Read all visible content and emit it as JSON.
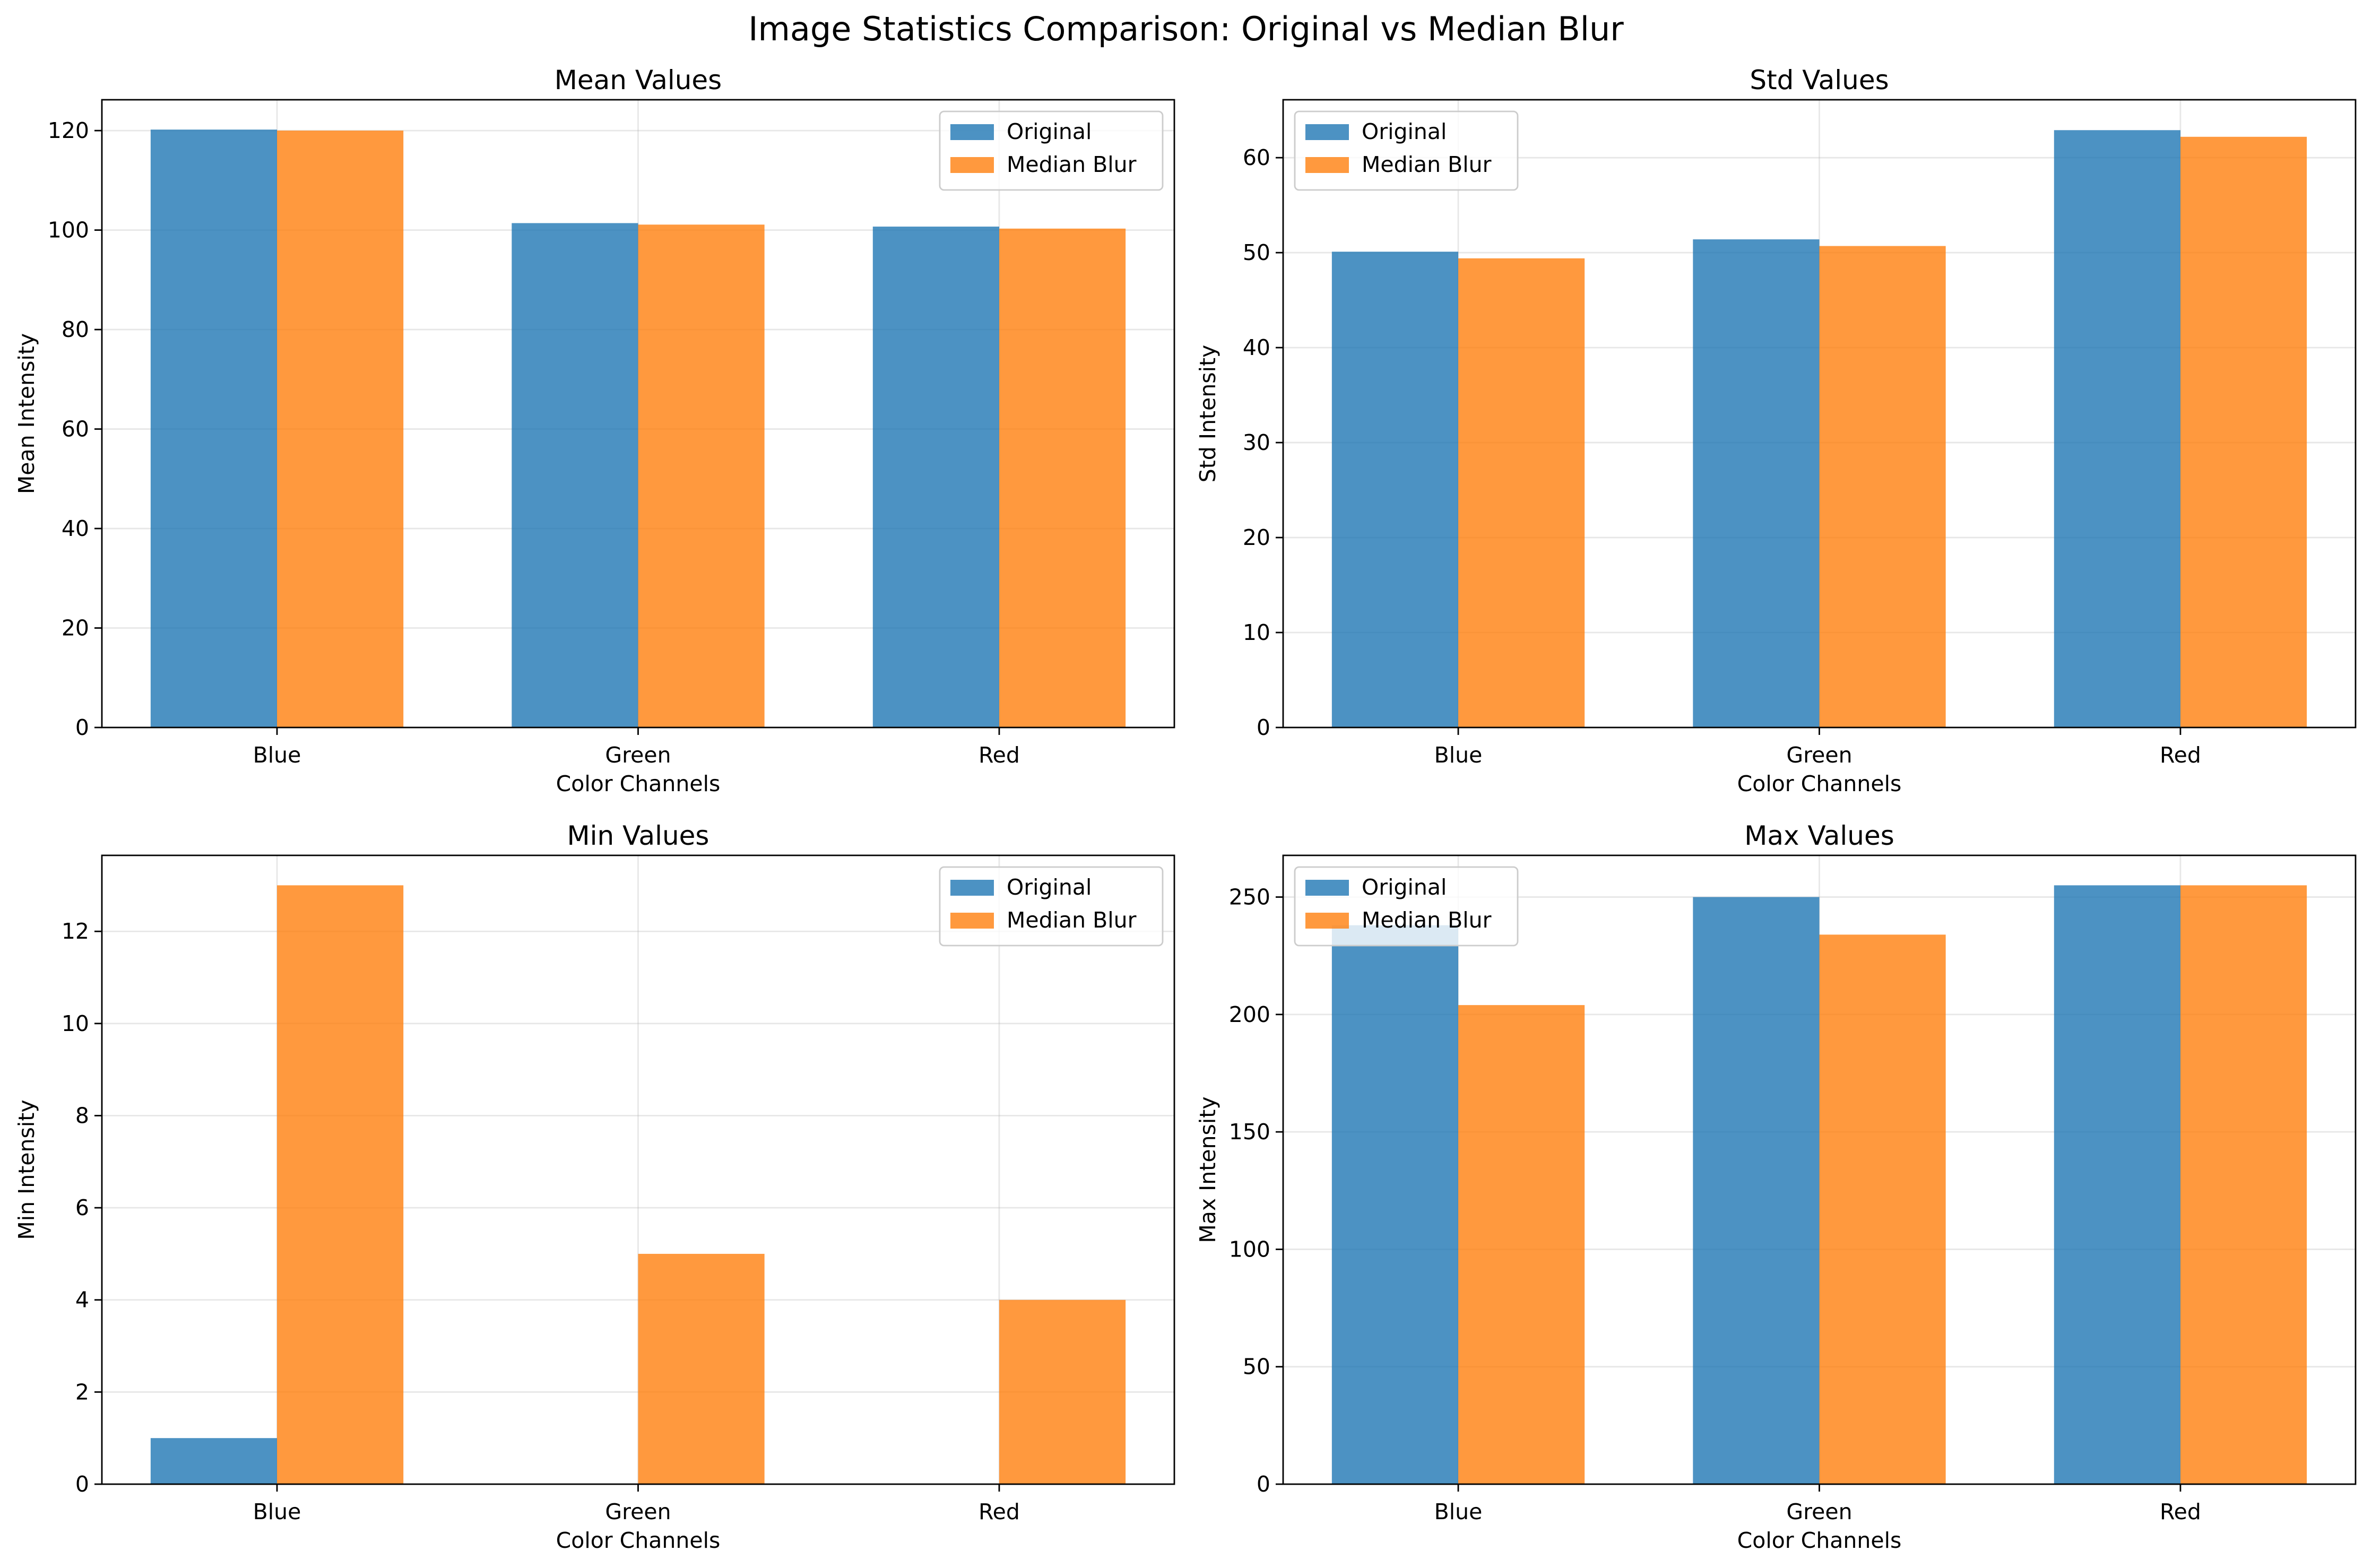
{
  "figure": {
    "suptitle": "Image Statistics Comparison: Original vs Median Blur"
  },
  "colors": {
    "original": "#1f77b4",
    "median_blur": "#ff7f0e"
  },
  "chart_data": [
    {
      "type": "bar",
      "title": "Mean Values",
      "xlabel": "Color Channels",
      "ylabel": "Mean Intensity",
      "categories": [
        "Blue",
        "Green",
        "Red"
      ],
      "series": [
        {
          "name": "Original",
          "values": [
            120.2,
            101.4,
            100.7
          ]
        },
        {
          "name": "Median Blur",
          "values": [
            120.0,
            101.1,
            100.3
          ]
        }
      ],
      "ylim": [
        0,
        126.2
      ],
      "yticks": [
        0,
        20,
        40,
        60,
        80,
        100,
        120
      ],
      "legend": "upper right",
      "grid": true
    },
    {
      "type": "bar",
      "title": "Std Values",
      "xlabel": "Color Channels",
      "ylabel": "Std Intensity",
      "categories": [
        "Blue",
        "Green",
        "Red"
      ],
      "series": [
        {
          "name": "Original",
          "values": [
            50.1,
            51.4,
            62.9
          ]
        },
        {
          "name": "Median Blur",
          "values": [
            49.4,
            50.7,
            62.2
          ]
        }
      ],
      "ylim": [
        0,
        66.1
      ],
      "yticks": [
        0,
        10,
        20,
        30,
        40,
        50,
        60
      ],
      "legend": "upper left",
      "grid": true
    },
    {
      "type": "bar",
      "title": "Min Values",
      "xlabel": "Color Channels",
      "ylabel": "Min Intensity",
      "categories": [
        "Blue",
        "Green",
        "Red"
      ],
      "series": [
        {
          "name": "Original",
          "values": [
            1,
            0,
            0
          ]
        },
        {
          "name": "Median Blur",
          "values": [
            13,
            5,
            4
          ]
        }
      ],
      "ylim": [
        0,
        13.65
      ],
      "yticks": [
        0,
        2,
        4,
        6,
        8,
        10,
        12
      ],
      "legend": "upper right",
      "grid": true
    },
    {
      "type": "bar",
      "title": "Max Values",
      "xlabel": "Color Channels",
      "ylabel": "Max Intensity",
      "categories": [
        "Blue",
        "Green",
        "Red"
      ],
      "series": [
        {
          "name": "Original",
          "values": [
            238,
            250,
            255
          ]
        },
        {
          "name": "Median Blur",
          "values": [
            204,
            234,
            255
          ]
        }
      ],
      "ylim": [
        0,
        267.75
      ],
      "yticks": [
        0,
        50,
        100,
        150,
        200,
        250
      ],
      "legend": "upper left",
      "grid": true
    }
  ]
}
